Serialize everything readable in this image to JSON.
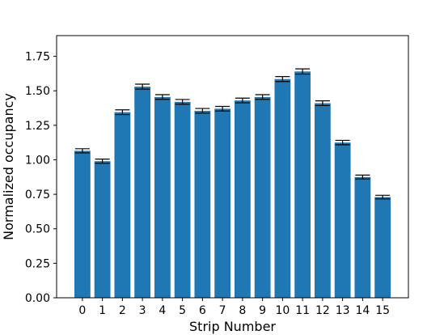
{
  "chart_data": {
    "type": "bar",
    "xlabel": "Strip Number",
    "ylabel": "Normalized occupancy",
    "categories": [
      "0",
      "1",
      "2",
      "3",
      "4",
      "5",
      "6",
      "7",
      "8",
      "9",
      "10",
      "11",
      "12",
      "13",
      "14",
      "15"
    ],
    "values": [
      1.065,
      0.99,
      1.345,
      1.53,
      1.455,
      1.42,
      1.355,
      1.37,
      1.43,
      1.455,
      1.585,
      1.64,
      1.41,
      1.125,
      0.875,
      0.73
    ],
    "errors": [
      0.015,
      0.015,
      0.017,
      0.018,
      0.017,
      0.017,
      0.017,
      0.017,
      0.017,
      0.017,
      0.018,
      0.019,
      0.017,
      0.016,
      0.014,
      0.013
    ],
    "ylim": [
      0,
      1.9
    ],
    "yticks": [
      "0.00",
      "0.25",
      "0.50",
      "0.75",
      "1.00",
      "1.25",
      "1.50",
      "1.75"
    ],
    "ytick_values": [
      0,
      0.25,
      0.5,
      0.75,
      1.0,
      1.25,
      1.5,
      1.75
    ],
    "grid": false,
    "colors": {
      "bar": "#1f77b4",
      "error": "#000000"
    }
  }
}
